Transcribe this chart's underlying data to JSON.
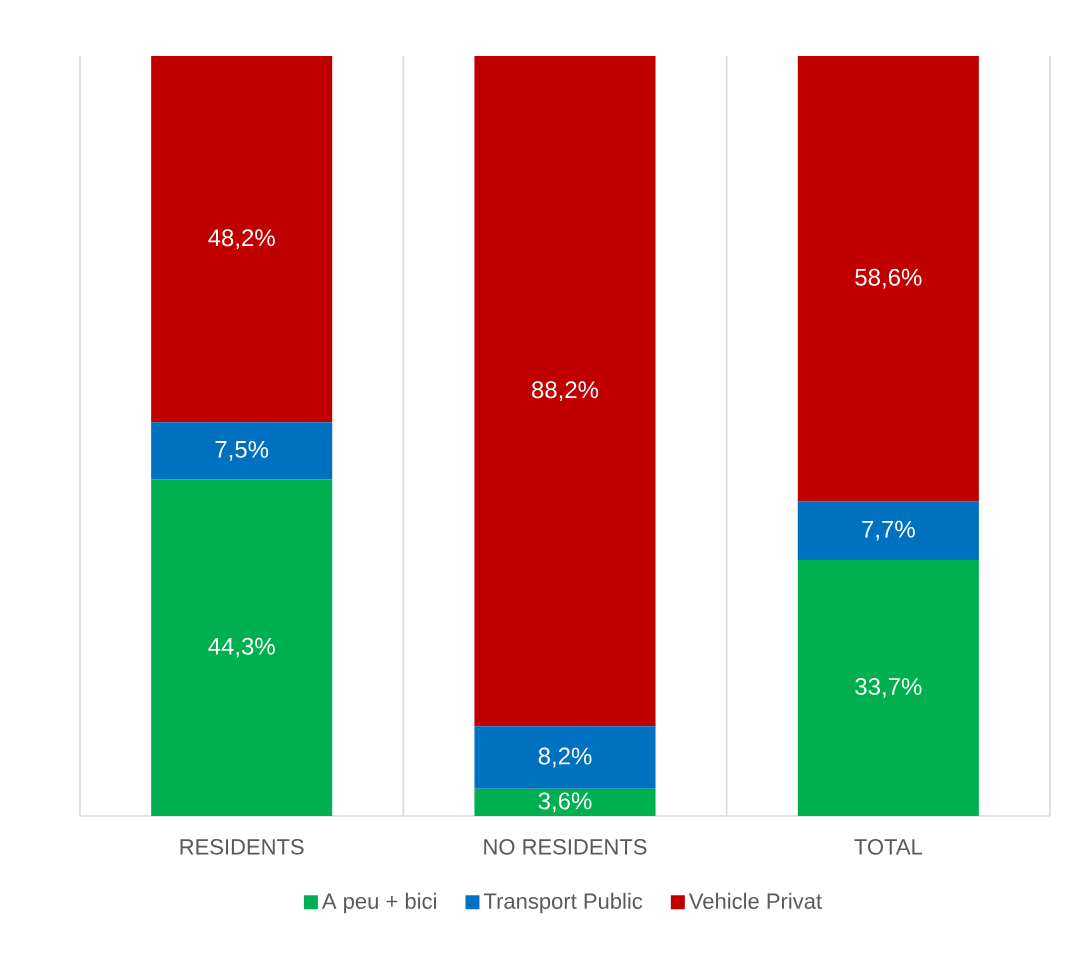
{
  "chart_data": {
    "type": "bar",
    "stacked": true,
    "categories": [
      "RESIDENTS",
      "NO RESIDENTS",
      "TOTAL"
    ],
    "series": [
      {
        "name": "A peu + bici",
        "color": "#00b050",
        "values": [
          44.3,
          3.6,
          33.7
        ],
        "value_labels": [
          "44,3%",
          "3,6%",
          "33,7%"
        ]
      },
      {
        "name": "Transport Public",
        "color": "#0070c0",
        "values": [
          7.5,
          8.2,
          7.7
        ],
        "value_labels": [
          "7,5%",
          "8,2%",
          "7,7%"
        ]
      },
      {
        "name": "Vehicle Privat",
        "color": "#c00000",
        "values": [
          48.2,
          88.2,
          58.6
        ],
        "value_labels": [
          "48,2%",
          "88,2%",
          "58,6%"
        ]
      }
    ],
    "grid": "x",
    "legend": "bottom",
    "tick_labels": "x"
  }
}
